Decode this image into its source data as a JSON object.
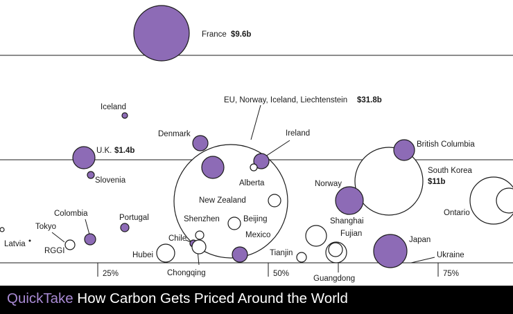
{
  "footer": {
    "brand": "QuickTake",
    "title": "How Carbon Gets Priced Around the World"
  },
  "colors": {
    "priced": "#8d6bb6",
    "open": "#ffffff",
    "ink": "#1a1a1a",
    "footer_bg": "#000000",
    "brand": "#a98ad4"
  },
  "chart_data": {
    "type": "bubble",
    "title": "How Carbon Gets Priced Around the World",
    "xlabel": "",
    "ylabel": "",
    "xticks": [
      "25%",
      "50%",
      "75%"
    ],
    "grid": "horizontal",
    "bubbles": [
      {
        "name": "France",
        "value": "$9.6b",
        "filled": true
      },
      {
        "name": "EU, Norway, Iceland, Liechtenstein",
        "value": "$31.8b",
        "filled": false
      },
      {
        "name": "U.K.",
        "value": "$1.4b",
        "filled": true
      },
      {
        "name": "South Korea",
        "value": "$11b",
        "filled": false
      },
      {
        "name": "Iceland",
        "filled": true
      },
      {
        "name": "Denmark",
        "filled": true
      },
      {
        "name": "Ireland",
        "filled": true
      },
      {
        "name": "British Columbia",
        "filled": true
      },
      {
        "name": "Slovenia",
        "filled": true
      },
      {
        "name": "Alberta",
        "filled": true
      },
      {
        "name": "Norway",
        "filled": true
      },
      {
        "name": "New Zealand",
        "filled": false
      },
      {
        "name": "Ontario",
        "filled": false
      },
      {
        "name": "Colombia",
        "filled": true
      },
      {
        "name": "Portugal",
        "filled": true
      },
      {
        "name": "Tokyo",
        "filled": false
      },
      {
        "name": "Shenzhen",
        "filled": false
      },
      {
        "name": "Beijing",
        "filled": false
      },
      {
        "name": "Shanghai",
        "filled": false
      },
      {
        "name": "Latvia",
        "filled": false
      },
      {
        "name": "RGGI",
        "filled": false
      },
      {
        "name": "Chile",
        "filled": true
      },
      {
        "name": "Hubei",
        "filled": false
      },
      {
        "name": "Mexico",
        "filled": true
      },
      {
        "name": "Fujian",
        "filled": false
      },
      {
        "name": "Japan",
        "filled": true
      },
      {
        "name": "Tianjin",
        "filled": false
      },
      {
        "name": "Ukraine",
        "filled": false
      },
      {
        "name": "Chongqing",
        "filled": false
      },
      {
        "name": "Guangdong",
        "filled": false
      }
    ]
  }
}
